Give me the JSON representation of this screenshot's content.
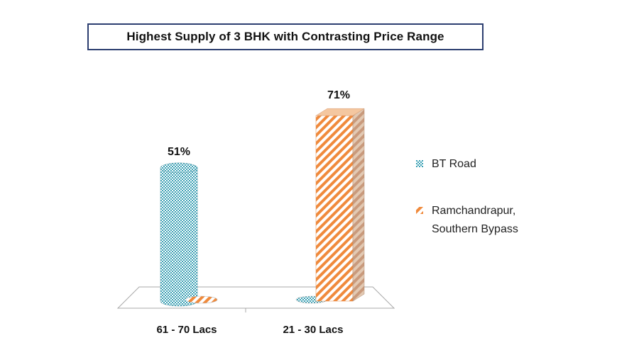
{
  "chart_data": {
    "type": "bar",
    "title": "Highest Supply of 3 BHK with Contrasting Price Range",
    "categories": [
      "61 - 70 Lacs",
      "21 - 30 Lacs"
    ],
    "series": [
      {
        "name": "BT Road",
        "values": [
          51,
          0
        ],
        "value_labels": [
          "51%",
          ""
        ],
        "color": "#3aa0b4",
        "pattern": "checker",
        "shape": "cylinder"
      },
      {
        "name": "Ramchandrapur, Southern Bypass",
        "values": [
          0,
          71
        ],
        "value_labels": [
          "",
          "71%"
        ],
        "color": "#f08a3c",
        "pattern": "diagonal-stripes",
        "shape": "box"
      }
    ],
    "ylim": [
      0,
      80
    ],
    "grid": false,
    "legend": "right",
    "legend_lines": [
      [
        "BT Road"
      ],
      [
        "Ramchandrapur,",
        "Southern Bypass"
      ]
    ]
  }
}
